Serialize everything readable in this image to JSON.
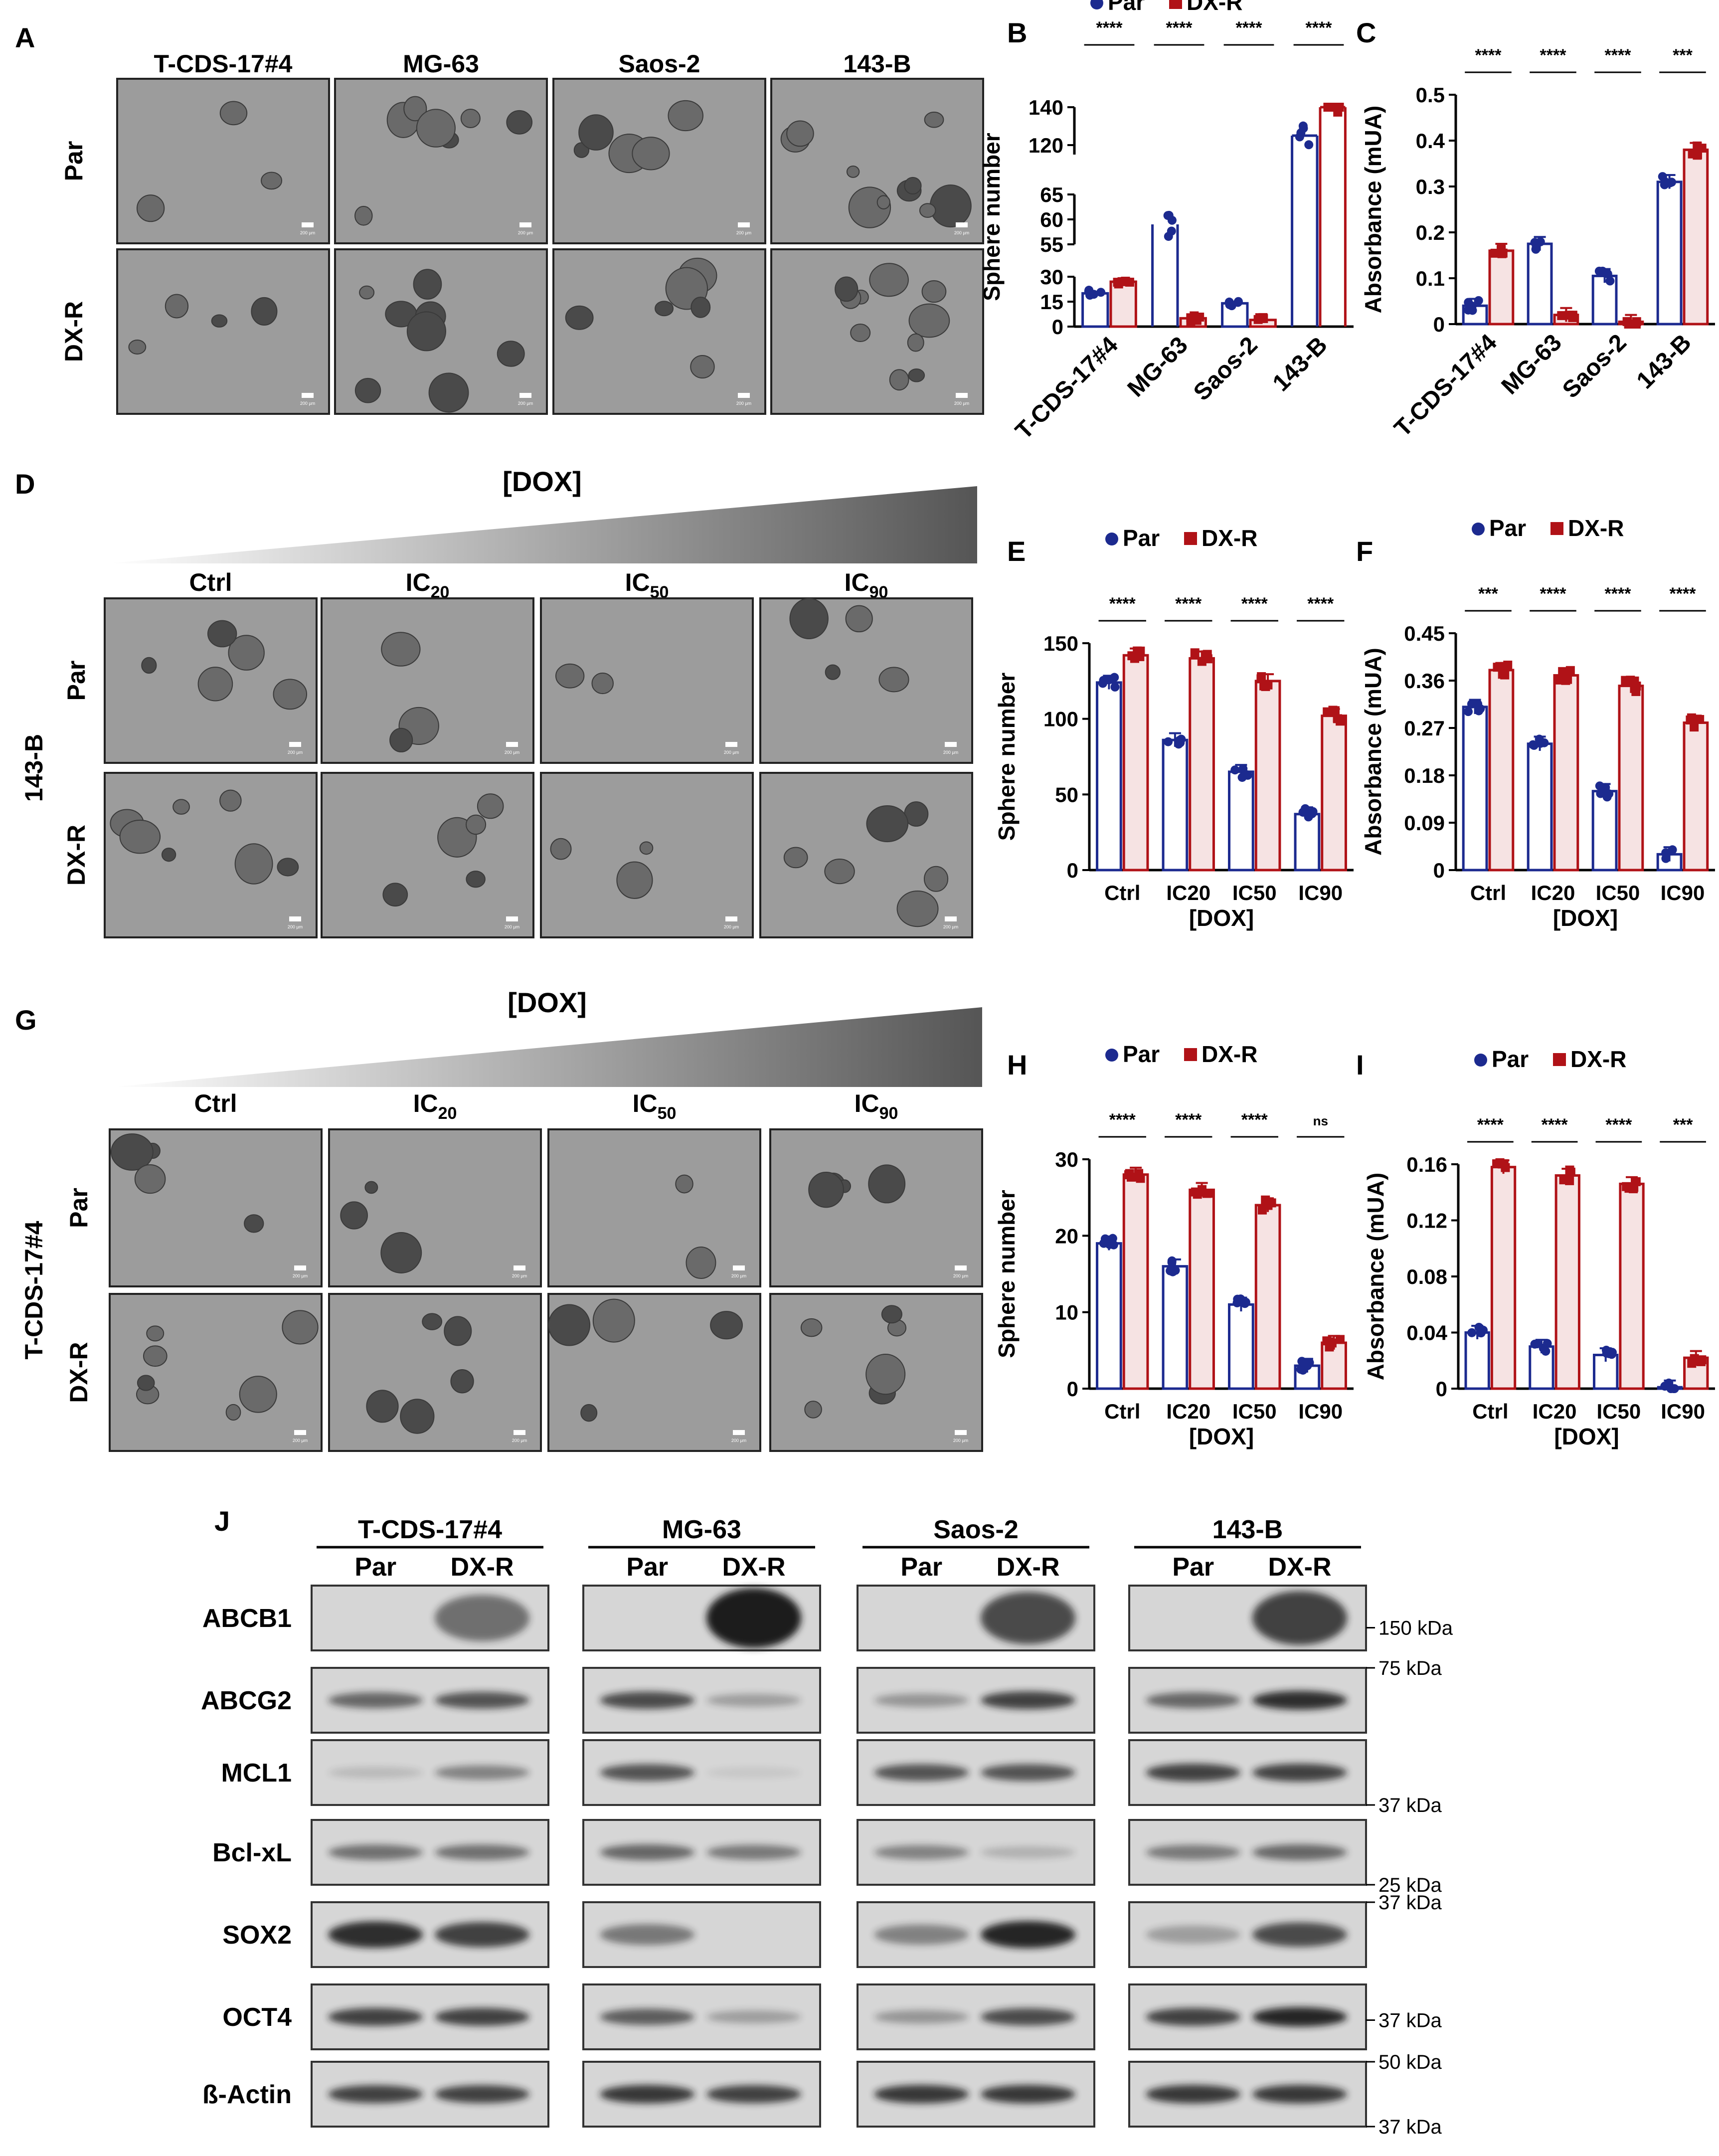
{
  "colors": {
    "par": "#1c2a8f",
    "dxr": "#b01217",
    "par_fill": "#ffffff",
    "dxr_fill": "#f6e3e3",
    "micro_bg": "#9c9c9c",
    "blot_bg": "#d6d6d6",
    "band": "#1a1a1a"
  },
  "panels": {
    "A": "A",
    "B": "B",
    "C": "C",
    "D": "D",
    "E": "E",
    "F": "F",
    "G": "G",
    "H": "H",
    "I": "I",
    "J": "J"
  },
  "legend": {
    "par": "Par",
    "dxr": "DX-R"
  },
  "micro_A": {
    "cols": [
      "T-CDS-17#4",
      "MG-63",
      "Saos-2",
      "143-B"
    ],
    "rows": [
      "Par",
      "DX-R"
    ],
    "scale": "200 µm"
  },
  "micro_D": {
    "ramp": "[DOX]",
    "cols": [
      {
        "base": "Ctrl",
        "sub": ""
      },
      {
        "base": "IC",
        "sub": "20"
      },
      {
        "base": "IC",
        "sub": "50"
      },
      {
        "base": "IC",
        "sub": "90"
      }
    ],
    "rows": [
      "Par",
      "DX-R"
    ],
    "side": "143-B"
  },
  "micro_G": {
    "ramp": "[DOX]",
    "cols": [
      {
        "base": "Ctrl",
        "sub": ""
      },
      {
        "base": "IC",
        "sub": "20"
      },
      {
        "base": "IC",
        "sub": "50"
      },
      {
        "base": "IC",
        "sub": "90"
      }
    ],
    "rows": [
      "Par",
      "DX-R"
    ],
    "side": "T-CDS-17#4"
  },
  "chart_data": [
    {
      "panel": "B",
      "type": "bar",
      "ylabel": "Sphere number",
      "axis_break": true,
      "yticks": [
        0,
        15,
        30,
        55,
        60,
        65,
        120,
        140
      ],
      "categories": [
        "T-CDS-17#4",
        "MG-63",
        "Saos-2",
        "143-B"
      ],
      "series": [
        {
          "name": "Par",
          "values": [
            20,
            59,
            14,
            125
          ]
        },
        {
          "name": "DX-R",
          "values": [
            27,
            5,
            4,
            143
          ]
        }
      ],
      "significance": [
        "****",
        "****",
        "****",
        "****"
      ]
    },
    {
      "panel": "C",
      "type": "bar",
      "ylabel": "Absorbance (mUA)",
      "ylim": [
        0,
        0.5
      ],
      "yticks": [
        0.0,
        0.1,
        0.2,
        0.3,
        0.4,
        0.5
      ],
      "categories": [
        "T-CDS-17#4",
        "MG-63",
        "Saos-2",
        "143-B"
      ],
      "series": [
        {
          "name": "Par",
          "values": [
            0.04,
            0.175,
            0.105,
            0.31
          ]
        },
        {
          "name": "DX-R",
          "values": [
            0.16,
            0.02,
            0.005,
            0.38
          ]
        }
      ],
      "significance": [
        "****",
        "****",
        "****",
        "***"
      ]
    },
    {
      "panel": "E",
      "type": "bar",
      "xlabel": "[DOX]",
      "ylabel": "Sphere number",
      "ylim": [
        0,
        150
      ],
      "yticks": [
        0,
        50,
        100,
        150
      ],
      "categories": [
        "Ctrl",
        "IC20",
        "IC50",
        "IC90"
      ],
      "series": [
        {
          "name": "Par",
          "values": [
            124,
            86,
            65,
            37
          ]
        },
        {
          "name": "DX-R",
          "values": [
            142,
            140,
            125,
            102
          ]
        }
      ],
      "significance": [
        "****",
        "****",
        "****",
        "****"
      ]
    },
    {
      "panel": "F",
      "type": "bar",
      "xlabel": "[DOX]",
      "ylabel": "Absorbance (mUA)",
      "ylim": [
        0,
        0.45
      ],
      "yticks": [
        0.0,
        0.09,
        0.18,
        0.27,
        0.36,
        0.45
      ],
      "categories": [
        "Ctrl",
        "IC20",
        "IC50",
        "IC90"
      ],
      "series": [
        {
          "name": "Par",
          "values": [
            0.31,
            0.24,
            0.15,
            0.03
          ]
        },
        {
          "name": "DX-R",
          "values": [
            0.38,
            0.37,
            0.35,
            0.28
          ]
        }
      ],
      "significance": [
        "***",
        "****",
        "****",
        "****"
      ]
    },
    {
      "panel": "H",
      "type": "bar",
      "xlabel": "[DOX]",
      "ylabel": "Sphere number",
      "ylim": [
        0,
        30
      ],
      "yticks": [
        0,
        10,
        20,
        30
      ],
      "categories": [
        "Ctrl",
        "IC20",
        "IC50",
        "IC90"
      ],
      "series": [
        {
          "name": "Par",
          "values": [
            19,
            16,
            11,
            3
          ]
        },
        {
          "name": "DX-R",
          "values": [
            28,
            26,
            24,
            6
          ]
        }
      ],
      "significance": [
        "****",
        "****",
        "****",
        "ns"
      ]
    },
    {
      "panel": "I",
      "type": "bar",
      "xlabel": "[DOX]",
      "ylabel": "Absorbance (mUA)",
      "ylim": [
        0,
        0.16
      ],
      "yticks": [
        0.0,
        0.04,
        0.08,
        0.12,
        0.16
      ],
      "categories": [
        "Ctrl",
        "IC20",
        "IC50",
        "IC90"
      ],
      "series": [
        {
          "name": "Par",
          "values": [
            0.04,
            0.03,
            0.024,
            0.001
          ]
        },
        {
          "name": "DX-R",
          "values": [
            0.158,
            0.152,
            0.146,
            0.022
          ]
        }
      ],
      "significance": [
        "****",
        "****",
        "****",
        "***"
      ]
    }
  ],
  "blot": {
    "cell_lines": [
      "T-CDS-17#4",
      "MG-63",
      "Saos-2",
      "143-B"
    ],
    "conditions": [
      "Par",
      "DX-R"
    ],
    "proteins": [
      "ABCB1",
      "ABCG2",
      "MCL1",
      "Bcl-xL",
      "SOX2",
      "OCT4",
      "ß-Actin"
    ],
    "markers": [
      {
        "label": "150 kDa",
        "row": 0,
        "pos": 0.65
      },
      {
        "label": "75 kDa",
        "row": 1,
        "pos": 0.0
      },
      {
        "label": "37 kDa",
        "row": 2,
        "pos": 1.0
      },
      {
        "label": "25 kDa",
        "row": 3,
        "pos": 1.0
      },
      {
        "label": "37 kDa",
        "row": 4,
        "pos": 0.0
      },
      {
        "label": "37 kDa",
        "row": 5,
        "pos": 0.55
      },
      {
        "label": "50 kDa",
        "row": 6,
        "pos": 0.0
      },
      {
        "label": "37 kDa",
        "row": 6,
        "pos": 1.0
      }
    ],
    "intensity": [
      [
        [
          0,
          0.55
        ],
        [
          0,
          1.0
        ],
        [
          0,
          0.75
        ],
        [
          0,
          0.8
        ]
      ],
      [
        [
          0.6,
          0.7
        ],
        [
          0.75,
          0.3
        ],
        [
          0.35,
          0.8
        ],
        [
          0.6,
          0.9
        ]
      ],
      [
        [
          0.15,
          0.45
        ],
        [
          0.7,
          0.08
        ],
        [
          0.7,
          0.7
        ],
        [
          0.8,
          0.8
        ]
      ],
      [
        [
          0.55,
          0.55
        ],
        [
          0.6,
          0.5
        ],
        [
          0.45,
          0.2
        ],
        [
          0.5,
          0.6
        ]
      ],
      [
        [
          0.9,
          0.8
        ],
        [
          0.5,
          0.0
        ],
        [
          0.45,
          0.95
        ],
        [
          0.3,
          0.75
        ]
      ],
      [
        [
          0.8,
          0.8
        ],
        [
          0.65,
          0.3
        ],
        [
          0.35,
          0.75
        ],
        [
          0.8,
          0.95
        ]
      ],
      [
        [
          0.8,
          0.8
        ],
        [
          0.85,
          0.8
        ],
        [
          0.85,
          0.85
        ],
        [
          0.85,
          0.85
        ]
      ]
    ]
  }
}
